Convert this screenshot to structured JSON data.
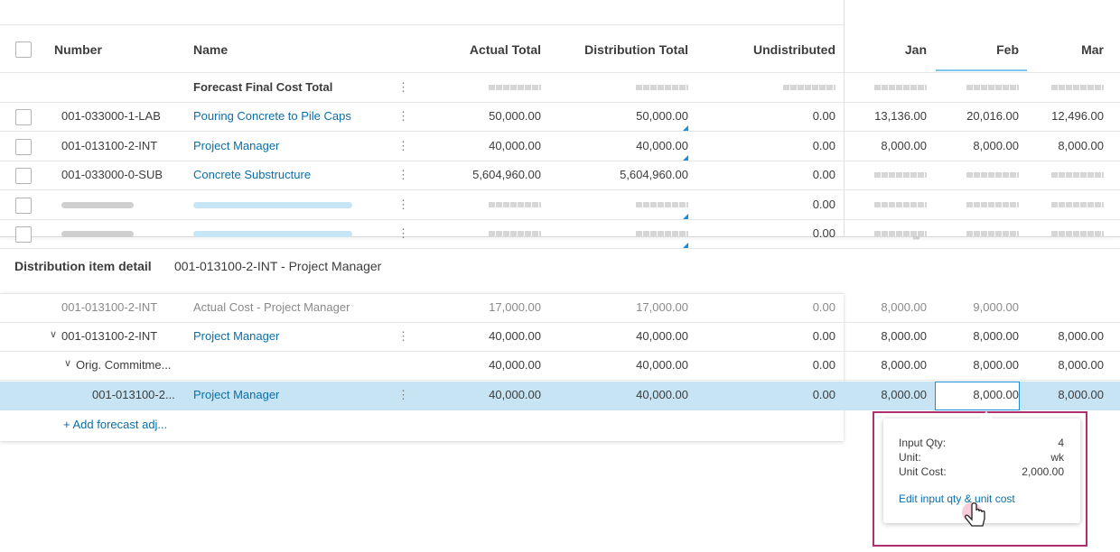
{
  "table": {
    "columns": [
      "Number",
      "Name",
      "Actual Total",
      "Distribution Total",
      "Undistributed",
      "Jan",
      "Feb",
      "Mar"
    ],
    "rows": [
      [
        null,
        "Forecast Final Cost Total",
        null,
        null,
        null,
        null,
        null,
        null
      ],
      [
        "001-033000-1-LAB",
        "Pouring Concrete to Pile Caps",
        "50,000.00",
        "50,000.00",
        "0.00",
        "13,136.00",
        "20,016.00",
        "12,496.00"
      ],
      [
        "001-013100-2-INT",
        "Project Manager",
        "40,000.00",
        "40,000.00",
        "0.00",
        "8,000.00",
        "8,000.00",
        "8,000.00"
      ],
      [
        "001-033000-0-SUB",
        "Concrete Substructure",
        "5,604,960.00",
        "5,604,960.00",
        "0.00",
        null,
        null,
        null
      ],
      [
        null,
        null,
        null,
        null,
        "0.00",
        null,
        null,
        null
      ],
      [
        null,
        null,
        null,
        null,
        "0.00",
        null,
        null,
        null
      ]
    ]
  },
  "detail": {
    "title": "Distribution item detail",
    "subtitle": "001-013100-2-INT - Project Manager",
    "rows": [
      [
        "001-013100-2-INT",
        "Actual Cost - Project Manager",
        "17,000.00",
        "17,000.00",
        "0.00",
        "8,000.00",
        "9,000.00",
        null
      ],
      [
        "001-013100-2-INT",
        "Project Manager",
        "40,000.00",
        "40,000.00",
        "0.00",
        "8,000.00",
        "8,000.00",
        "8,000.00"
      ],
      [
        "Orig. Commitme...",
        null,
        "40,000.00",
        "40,000.00",
        "0.00",
        "8,000.00",
        "8,000.00",
        "8,000.00"
      ],
      [
        "001-013100-2...",
        "Project Manager",
        "40,000.00",
        "40,000.00",
        "0.00",
        "8,000.00",
        "8,000.00",
        "8,000.00"
      ]
    ],
    "add_link": "+ Add forecast adj..."
  },
  "popup": {
    "rows": [
      [
        "Input Qty:",
        "4"
      ],
      [
        "Unit:",
        "wk"
      ],
      [
        "Unit Cost:",
        "2,000.00"
      ]
    ],
    "link": "Edit input qty & unit cost"
  }
}
